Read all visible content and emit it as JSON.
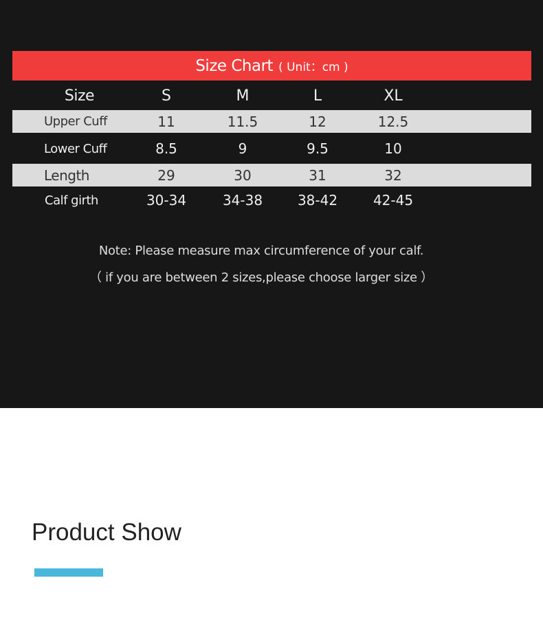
{
  "size_chart": {
    "title": "Size Chart",
    "unit": "( Unit：cm )",
    "header": {
      "label": "Size",
      "sizes": [
        "S",
        "M",
        "L",
        "XL"
      ]
    },
    "rows": [
      {
        "label": "Upper Cuff",
        "values": [
          "11",
          "11.5",
          "12",
          "12.5"
        ]
      },
      {
        "label": "Lower Cuff",
        "values": [
          "8.5",
          "9",
          "9.5",
          "10"
        ]
      },
      {
        "label": "Length",
        "values": [
          "29",
          "30",
          "31",
          "32"
        ]
      },
      {
        "label": "Calf girth",
        "values": [
          "30-34",
          "34-38",
          "38-42",
          "42-45"
        ]
      }
    ],
    "note_line1": "Note: Please measure max circumference of your calf.",
    "note_line2": "（ if you are between 2 sizes,please choose larger size ）"
  },
  "section_title": "Product Show",
  "colors": {
    "header_band": "#f03c3a",
    "background": "#171717",
    "row_stripe": "#dcdcdc",
    "accent_bar": "#4ab8dc"
  }
}
